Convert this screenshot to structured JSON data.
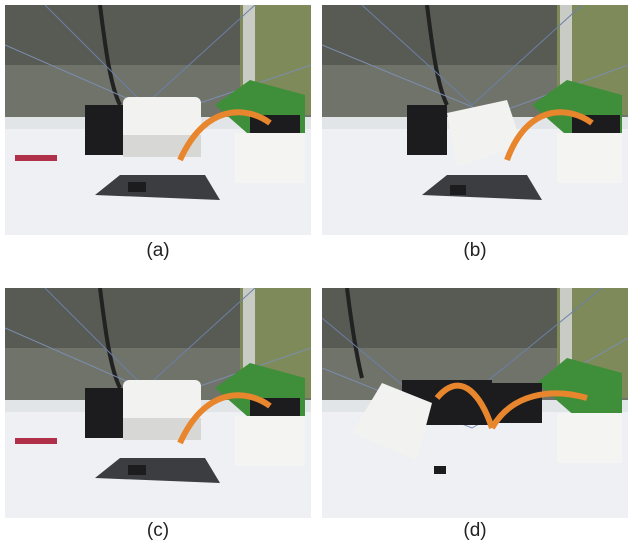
{
  "panels": [
    {
      "caption": "(a)",
      "state": "gripper-centered"
    },
    {
      "caption": "(b)",
      "state": "gripper-raised"
    },
    {
      "caption": "(c)",
      "state": "gripper-centered"
    },
    {
      "caption": "(d)",
      "state": "gripper-tilted"
    }
  ],
  "colors": {
    "floor": "#eef0f3",
    "wall": "#5a5d52",
    "gripper": "#f2f2f0",
    "motor": "#1c1c1e",
    "circuit": "#3f8f3a",
    "cable": "#e8862e",
    "tape": "#b03049"
  }
}
